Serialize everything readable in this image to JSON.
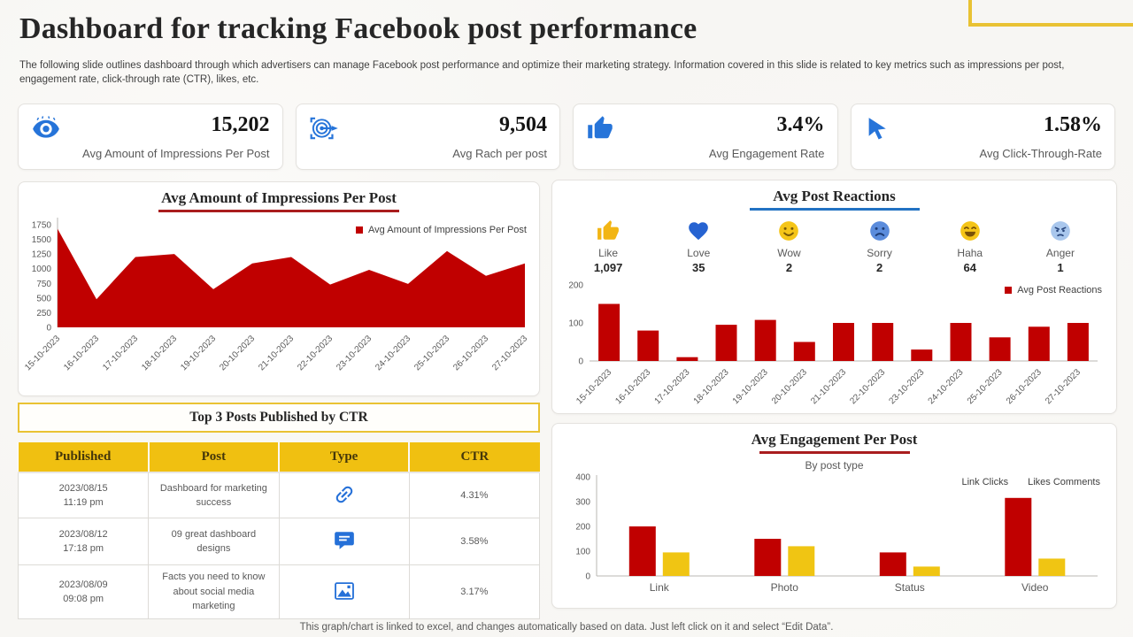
{
  "page": {
    "title": "Dashboard for tracking Facebook post performance",
    "subtitle": "The following slide outlines dashboard through which advertisers can manage Facebook post performance and optimize their marketing strategy. Information covered in this slide is related to key metrics such as impressions per post, engagement rate, click-through rate (CTR), likes, etc.",
    "footer": "This graph/chart is linked to excel,  and changes automatically based on data. Just left click on it and select “Edit Data”."
  },
  "colors": {
    "dark_red": "#C00000",
    "gold": "#F0C011",
    "icon_blue": "#2674D9",
    "underline_red": "#A91D1E",
    "underline_blue": "#2272C3",
    "gold_border": "#E9C233"
  },
  "kpis": [
    {
      "icon": "eye-icon",
      "value": "15,202",
      "label": "Avg Amount of Impressions Per Post"
    },
    {
      "icon": "reach-target-icon",
      "value": "9,504",
      "label": "Avg Rach per post"
    },
    {
      "icon": "thumbs-up-icon",
      "value": "3.4%",
      "label": "Avg Engagement Rate"
    },
    {
      "icon": "cursor-icon",
      "value": "1.58%",
      "label": "Avg Click-Through-Rate"
    }
  ],
  "reactions": {
    "title": "Avg Post Reactions",
    "items": [
      {
        "icon": "like-reaction-icon",
        "name": "Like",
        "value": "1,097"
      },
      {
        "icon": "love-reaction-icon",
        "name": "Love",
        "value": "35"
      },
      {
        "icon": "wow-reaction-icon",
        "name": "Wow",
        "value": "2"
      },
      {
        "icon": "sorry-reaction-icon",
        "name": "Sorry",
        "value": "2"
      },
      {
        "icon": "haha-reaction-icon",
        "name": "Haha",
        "value": "64"
      },
      {
        "icon": "anger-reaction-icon",
        "name": "Anger",
        "value": "1"
      }
    ]
  },
  "top_posts": {
    "title": "Top 3 Posts Published by CTR",
    "columns": [
      "Published",
      "Post",
      "Type",
      "CTR"
    ],
    "rows": [
      {
        "date": "2023/08/15",
        "time": "11:19 pm",
        "post": "Dashboard for marketing success",
        "type_icon": "link-icon",
        "ctr": "4.31%"
      },
      {
        "date": "2023/08/12",
        "time": "17:18 pm",
        "post": "09 great dashboard designs",
        "type_icon": "comment-icon",
        "ctr": "3.58%"
      },
      {
        "date": "2023/08/09",
        "time": "09:08 pm",
        "post": "Facts you need to know about social media marketing",
        "type_icon": "image-icon",
        "ctr": "3.17%"
      }
    ]
  },
  "chart_data": [
    {
      "type": "area",
      "title": "Avg Amount of Impressions Per Post",
      "legend": "Avg Amount of Impressions Per Post",
      "color": "#C00000",
      "categories": [
        "15-10-2023",
        "16-10-2023",
        "17-10-2023",
        "18-10-2023",
        "19-10-2023",
        "20-10-2023",
        "21-10-2023",
        "22-10-2023",
        "23-10-2023",
        "24-10-2023",
        "25-10-2023",
        "26-10-2023",
        "27-10-2023"
      ],
      "values": [
        1680,
        480,
        1200,
        1250,
        650,
        1090,
        1200,
        730,
        980,
        740,
        1300,
        880,
        1090
      ],
      "xlabel": "",
      "ylabel": "",
      "ylim": [
        0,
        1750
      ],
      "ytick": 250,
      "grid": false,
      "legend_position": "top-right"
    },
    {
      "type": "bar",
      "title": "Avg Post Reactions",
      "legend": "Avg Post Reactions",
      "color": "#C00000",
      "categories": [
        "15-10-2023",
        "16-10-2023",
        "17-10-2023",
        "18-10-2023",
        "19-10-2023",
        "20-10-2023",
        "21-10-2023",
        "22-10-2023",
        "23-10-2023",
        "24-10-2023",
        "25-10-2023",
        "26-10-2023",
        "27-10-2023"
      ],
      "values": [
        150,
        80,
        10,
        95,
        108,
        50,
        100,
        100,
        30,
        100,
        62,
        90,
        100
      ],
      "xlabel": "",
      "ylabel": "",
      "ylim": [
        0,
        200
      ],
      "ytick": 100,
      "grid": false,
      "legend_position": "top-right"
    },
    {
      "type": "bar",
      "title": "Avg Engagement Per Post",
      "subtitle": "By post type",
      "categories": [
        "Link",
        "Photo",
        "Status",
        "Video"
      ],
      "series": [
        {
          "name": "Link Clicks",
          "color": "#C00000",
          "values": [
            200,
            150,
            95,
            315
          ]
        },
        {
          "name": "Likes Comments",
          "color": "#F0C513",
          "values": [
            95,
            120,
            38,
            70
          ]
        }
      ],
      "xlabel": "",
      "ylabel": "",
      "ylim": [
        0,
        400
      ],
      "ytick": 100,
      "grid": false,
      "legend_position": "top-right"
    }
  ]
}
